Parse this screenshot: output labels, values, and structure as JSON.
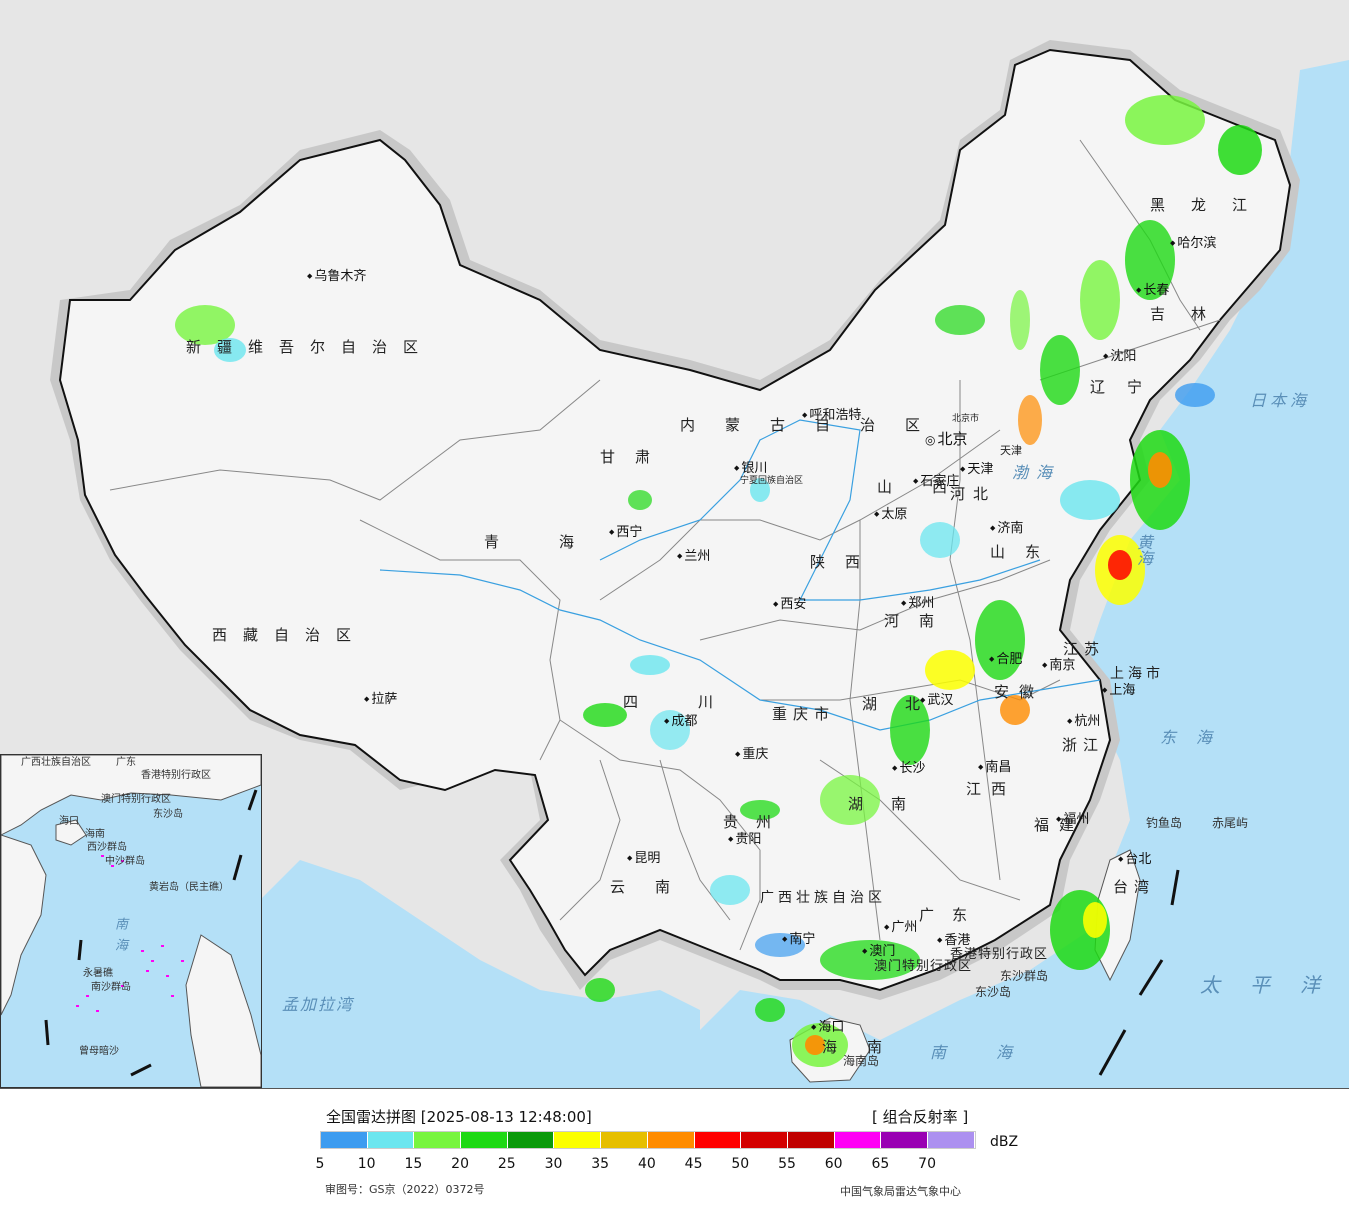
{
  "map": {
    "cities": [
      "乌鲁木齐",
      "拉萨",
      "西宁",
      "兰州",
      "银川",
      "成都",
      "重庆",
      "贵阳",
      "昆明",
      "南宁",
      "呼和浩特",
      "北京",
      "天津",
      "石家庄",
      "太原",
      "济南",
      "西安",
      "郑州",
      "合肥",
      "南京",
      "上海",
      "杭州",
      "武汉",
      "长沙",
      "南昌",
      "福州",
      "台北",
      "广州",
      "香港",
      "澳门",
      "海口",
      "哈尔滨",
      "长春",
      "沈阳"
    ],
    "provinces": [
      "新疆维吾尔自治区",
      "西藏自治区",
      "青海",
      "甘肃",
      "四川",
      "云南",
      "贵州",
      "广西壮族自治区",
      "内蒙古自治区",
      "陕西",
      "山西",
      "河北",
      "河南",
      "山东",
      "湖北",
      "湖南",
      "江西",
      "安徽",
      "江苏",
      "浙江",
      "福建",
      "广东",
      "海南",
      "台湾",
      "黑龙江",
      "吉林",
      "辽宁",
      "宁夏回族自治区",
      "重庆市",
      "上海市",
      "天津",
      "北京市",
      "香港特别行政区",
      "澳门特别行政区"
    ],
    "seas": [
      "渤海",
      "黄海",
      "东海",
      "南海",
      "日本海",
      "太平洋",
      "孟加拉湾"
    ],
    "islands": [
      "钓鱼岛",
      "赤尾屿",
      "东沙群岛",
      "东沙岛",
      "海南岛"
    ],
    "inset": {
      "labels": [
        "广西壮族自治区",
        "广东",
        "香港特别行政区",
        "澳门特别行政区",
        "东沙岛",
        "海南",
        "海口",
        "西沙群岛",
        "中沙群岛",
        "黄岩岛（民主礁）",
        "永暑礁",
        "南沙群岛",
        "曾母暗沙"
      ],
      "sea": "南海"
    }
  },
  "legend": {
    "title": "全国雷达拼图 [2025-08-13 12:48:00]",
    "product": "[ 组合反射率 ]",
    "unit": "dBZ",
    "colors": [
      "#3d9cf0",
      "#6be6ef",
      "#78f540",
      "#1ed914",
      "#0a9a0a",
      "#fbff00",
      "#e6bf00",
      "#ff8c00",
      "#ff0000",
      "#d40000",
      "#c00000",
      "#ff00f5",
      "#9900b3",
      "#ac90f0"
    ],
    "ticks": [
      "5",
      "10",
      "15",
      "20",
      "25",
      "30",
      "35",
      "40",
      "45",
      "50",
      "55",
      "60",
      "65",
      "70"
    ],
    "approval": "审图号：GS京（2022）0372号",
    "credit": "中国气象局雷达气象中心"
  }
}
